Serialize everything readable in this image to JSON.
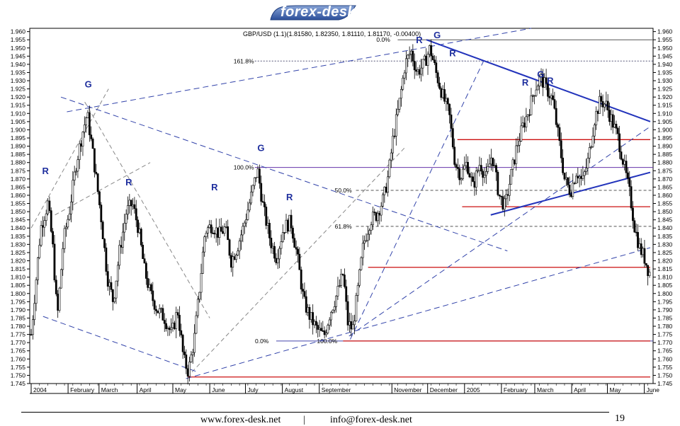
{
  "header": {
    "logo_text": "forex-desk"
  },
  "chart_data": {
    "type": "candlestick",
    "title": "GBP/USD (1.1)(1.81580, 1.82350, 1.81110, 1.81170, -0.00400)",
    "ylim": [
      1.745,
      1.962
    ],
    "y_ticks": [
      "1.745",
      "1.750",
      "1.755",
      "1.760",
      "1.765",
      "1.770",
      "1.775",
      "1.780",
      "1.785",
      "1.790",
      "1.795",
      "1.800",
      "1.805",
      "1.810",
      "1.815",
      "1.820",
      "1.825",
      "1.830",
      "1.835",
      "1.840",
      "1.845",
      "1.850",
      "1.855",
      "1.860",
      "1.865",
      "1.870",
      "1.875",
      "1.880",
      "1.885",
      "1.890",
      "1.895",
      "1.900",
      "1.905",
      "1.910",
      "1.915",
      "1.920",
      "1.925",
      "1.930",
      "1.935",
      "1.940",
      "1.945",
      "1.950",
      "1.955",
      "1.960"
    ],
    "x_labels": [
      {
        "label": "2004",
        "day": 0
      },
      {
        "label": "February",
        "day": 31
      },
      {
        "label": "March",
        "day": 57
      },
      {
        "label": "April",
        "day": 89
      },
      {
        "label": "May",
        "day": 119
      },
      {
        "label": "June",
        "day": 150
      },
      {
        "label": "July",
        "day": 180
      },
      {
        "label": "August",
        "day": 211
      },
      {
        "label": "September",
        "day": 242
      },
      {
        "label": "November",
        "day": 303
      },
      {
        "label": "December",
        "day": 333
      },
      {
        "label": "2005",
        "day": 364
      },
      {
        "label": "February",
        "day": 395
      },
      {
        "label": "March",
        "day": 423
      },
      {
        "label": "April",
        "day": 454
      },
      {
        "label": "May",
        "day": 484
      },
      {
        "label": "June",
        "day": 515
      }
    ],
    "x_max_day": 520,
    "price_path": [
      [
        0,
        1.775
      ],
      [
        8,
        1.84
      ],
      [
        14,
        1.855
      ],
      [
        18,
        1.83
      ],
      [
        22,
        1.785
      ],
      [
        27,
        1.832
      ],
      [
        32,
        1.85
      ],
      [
        38,
        1.88
      ],
      [
        43,
        1.898
      ],
      [
        47,
        1.91
      ],
      [
        51,
        1.89
      ],
      [
        55,
        1.868
      ],
      [
        59,
        1.845
      ],
      [
        64,
        1.81
      ],
      [
        69,
        1.795
      ],
      [
        74,
        1.825
      ],
      [
        80,
        1.85
      ],
      [
        85,
        1.855
      ],
      [
        90,
        1.84
      ],
      [
        95,
        1.815
      ],
      [
        100,
        1.8
      ],
      [
        106,
        1.79
      ],
      [
        112,
        1.785
      ],
      [
        118,
        1.775
      ],
      [
        123,
        1.79
      ],
      [
        128,
        1.76
      ],
      [
        132,
        1.752
      ],
      [
        137,
        1.772
      ],
      [
        141,
        1.8
      ],
      [
        146,
        1.838
      ],
      [
        152,
        1.842
      ],
      [
        158,
        1.836
      ],
      [
        163,
        1.84
      ],
      [
        168,
        1.82
      ],
      [
        173,
        1.828
      ],
      [
        178,
        1.84
      ],
      [
        184,
        1.857
      ],
      [
        190,
        1.876
      ],
      [
        195,
        1.852
      ],
      [
        201,
        1.832
      ],
      [
        206,
        1.822
      ],
      [
        212,
        1.84
      ],
      [
        218,
        1.844
      ],
      [
        223,
        1.825
      ],
      [
        229,
        1.795
      ],
      [
        234,
        1.786
      ],
      [
        240,
        1.778
      ],
      [
        246,
        1.774
      ],
      [
        251,
        1.788
      ],
      [
        257,
        1.8
      ],
      [
        262,
        1.812
      ],
      [
        266,
        1.782
      ],
      [
        270,
        1.778
      ],
      [
        274,
        1.8
      ],
      [
        279,
        1.83
      ],
      [
        285,
        1.845
      ],
      [
        290,
        1.848
      ],
      [
        296,
        1.858
      ],
      [
        300,
        1.872
      ],
      [
        304,
        1.895
      ],
      [
        309,
        1.915
      ],
      [
        314,
        1.94
      ],
      [
        319,
        1.948
      ],
      [
        324,
        1.935
      ],
      [
        330,
        1.94
      ],
      [
        335,
        1.95
      ],
      [
        340,
        1.935
      ],
      [
        346,
        1.92
      ],
      [
        351,
        1.91
      ],
      [
        356,
        1.88
      ],
      [
        361,
        1.872
      ],
      [
        366,
        1.88
      ],
      [
        371,
        1.865
      ],
      [
        377,
        1.88
      ],
      [
        382,
        1.87
      ],
      [
        387,
        1.885
      ],
      [
        393,
        1.86
      ],
      [
        398,
        1.853
      ],
      [
        403,
        1.872
      ],
      [
        408,
        1.89
      ],
      [
        413,
        1.902
      ],
      [
        418,
        1.912
      ],
      [
        423,
        1.925
      ],
      [
        428,
        1.932
      ],
      [
        433,
        1.925
      ],
      [
        438,
        1.918
      ],
      [
        443,
        1.895
      ],
      [
        448,
        1.87
      ],
      [
        453,
        1.862
      ],
      [
        458,
        1.875
      ],
      [
        463,
        1.868
      ],
      [
        468,
        1.882
      ],
      [
        473,
        1.906
      ],
      [
        478,
        1.918
      ],
      [
        483,
        1.915
      ],
      [
        488,
        1.905
      ],
      [
        493,
        1.895
      ],
      [
        498,
        1.878
      ],
      [
        503,
        1.86
      ],
      [
        507,
        1.84
      ],
      [
        511,
        1.828
      ],
      [
        515,
        1.822
      ],
      [
        518,
        1.815
      ],
      [
        520,
        1.812
      ]
    ],
    "horizontal_lines": [
      {
        "label": "0.0%",
        "value": 1.955,
        "x_start": 290,
        "color": "#555555",
        "style": "solid"
      },
      {
        "label": "161.8%",
        "value": 1.942,
        "x_start": 170,
        "color": "#555577",
        "style": "dotted"
      },
      {
        "label": "100.0%",
        "value": 1.877,
        "x_start": 170,
        "color": "#6633aa",
        "style": "solid"
      },
      {
        "label": "50.0%",
        "value": 1.863,
        "x_start": 255,
        "color": "#555555",
        "style": "dashed"
      },
      {
        "label": "61.8%",
        "value": 1.841,
        "x_start": 255,
        "color": "#555555",
        "style": "dashed"
      },
      {
        "label": "0.0%",
        "value": 1.771,
        "x_start": 188,
        "color": "#4444aa",
        "style": "solid"
      },
      {
        "label": "100.0%",
        "value": 1.771,
        "x_start": 240,
        "color": "",
        "style": "none"
      }
    ],
    "red_lines": [
      {
        "value": 1.894,
        "x_start": 358,
        "x_end": 520
      },
      {
        "value": 1.853,
        "x_start": 362,
        "x_end": 520
      },
      {
        "value": 1.816,
        "x_start": 283,
        "x_end": 520
      },
      {
        "value": 1.771,
        "x_start": 262,
        "x_end": 520
      },
      {
        "value": 1.749,
        "x_start": 132,
        "x_end": 520
      }
    ],
    "annotations": [
      {
        "text": "G",
        "day": 48,
        "value": 1.926
      },
      {
        "text": "R",
        "day": 12,
        "value": 1.873
      },
      {
        "text": "R",
        "day": 82,
        "value": 1.866
      },
      {
        "text": "R",
        "day": 154,
        "value": 1.863
      },
      {
        "text": "G",
        "day": 193,
        "value": 1.887
      },
      {
        "text": "R",
        "day": 217,
        "value": 1.857
      },
      {
        "text": "R",
        "day": 326,
        "value": 1.953
      },
      {
        "text": "G",
        "day": 341,
        "value": 1.956
      },
      {
        "text": "R",
        "day": 354,
        "value": 1.945
      },
      {
        "text": "R",
        "day": 415,
        "value": 1.927
      },
      {
        "text": "G",
        "day": 428,
        "value": 1.932
      },
      {
        "text": "R",
        "day": 436,
        "value": 1.928
      }
    ],
    "blue_solid_lines": [
      [
        [
          332,
          1.955
        ],
        [
          520,
          1.905
        ]
      ],
      [
        [
          386,
          1.848
        ],
        [
          520,
          1.874
        ]
      ]
    ],
    "blue_dashed_lines": [
      [
        [
          30,
          1.911
        ],
        [
          420,
          1.962
        ]
      ],
      [
        [
          25,
          1.92
        ],
        [
          400,
          1.826
        ]
      ],
      [
        [
          10,
          1.786
        ],
        [
          140,
          1.752
        ]
      ],
      [
        [
          130,
          1.748
        ],
        [
          520,
          1.828
        ]
      ],
      [
        [
          268,
          1.772
        ],
        [
          380,
          1.942
        ]
      ],
      [
        [
          267,
          1.774
        ],
        [
          520,
          1.902
        ]
      ]
    ],
    "gray_dashed_lines": [
      [
        [
          0,
          1.84
        ],
        [
          65,
          1.925
        ]
      ],
      [
        [
          45,
          1.917
        ],
        [
          150,
          1.785
        ]
      ],
      [
        [
          20,
          1.848
        ],
        [
          100,
          1.88
        ]
      ],
      [
        [
          135,
          1.752
        ],
        [
          315,
          1.89
        ]
      ]
    ]
  },
  "footer": {
    "website": "www.forex-desk.net",
    "separator": "|",
    "email": "info@forex-desk.net",
    "page_number": "19"
  }
}
